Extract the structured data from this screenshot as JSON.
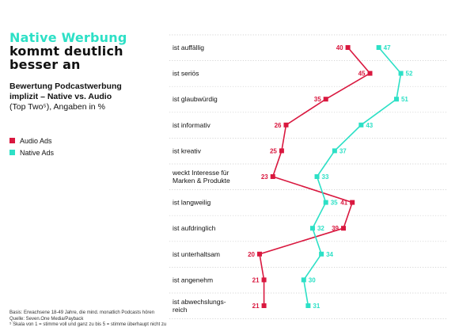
{
  "headline": [
    "Native Werbung",
    "kommt deutlich",
    "besser an"
  ],
  "subtitle": {
    "bold": "Bewertung Podcastwerbung implizit – Native vs. Audio",
    "normal": "(Top Two⁵), Angaben in %"
  },
  "notes": [
    "Basis: Erwachsene 18-49 Jahre, die mind. monatlich Podcasts hören",
    "Quelle: Seven.One Media/Payback",
    "⁵ Skala von 1 = stimme voll und ganz zu bis 5 = stimme überhaupt nicht zu"
  ],
  "chart_data": {
    "type": "line",
    "orientation": "horizontal",
    "categories": [
      "ist auffällig",
      "ist seriös",
      "ist glaubwürdig",
      "ist informativ",
      "ist kreativ",
      "weckt Interesse für Marken & Produkte",
      "ist langweilig",
      "ist aufdringlich",
      "ist unterhaltsam",
      "ist angenehm",
      "ist abwechslungs-reich"
    ],
    "category_lines": [
      [
        "ist auffällig"
      ],
      [
        "ist seriös"
      ],
      [
        "ist glaubwürdig"
      ],
      [
        "ist informativ"
      ],
      [
        "ist kreativ"
      ],
      [
        "weckt Interesse für",
        "Marken & Produkte"
      ],
      [
        "ist langweilig"
      ],
      [
        "ist aufdringlich"
      ],
      [
        "ist unterhaltsam"
      ],
      [
        "ist angenehm"
      ],
      [
        "ist abwechslungs-",
        "reich"
      ]
    ],
    "series": [
      {
        "name": "Audio Ads",
        "color": "#d9183f",
        "values": [
          40,
          45,
          35,
          26,
          25,
          23,
          41,
          39,
          20,
          21,
          21
        ]
      },
      {
        "name": "Native Ads",
        "color": "#2de0c6",
        "values": [
          47,
          52,
          51,
          43,
          37,
          33,
          35,
          32,
          34,
          30,
          31
        ]
      }
    ],
    "legend_position": "left",
    "grid": true
  }
}
